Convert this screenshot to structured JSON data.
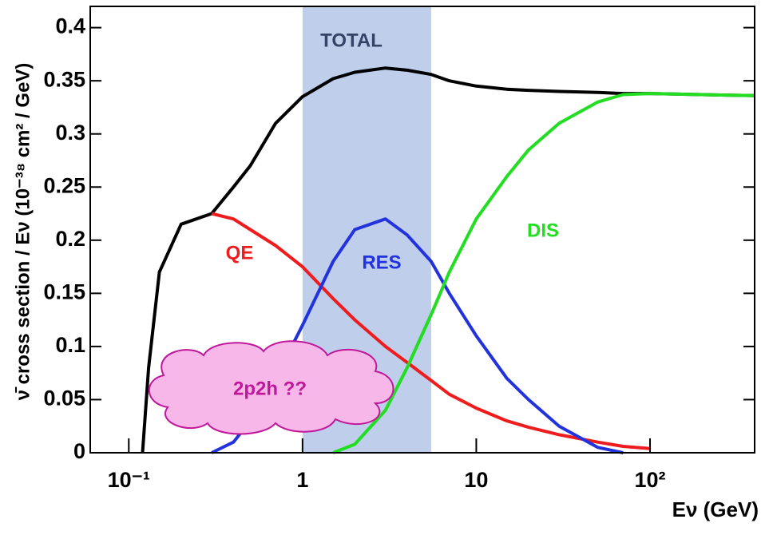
{
  "chart_data": {
    "type": "line",
    "y_label": "ν̄ cross section / Eν (10⁻³⁸ cm² / GeV)",
    "x_label": "Eν (GeV)",
    "log_x": true,
    "x": [
      0.12,
      0.13,
      0.15,
      0.2,
      0.3,
      0.4,
      0.5,
      0.7,
      1,
      1.5,
      2,
      3,
      4,
      5.5,
      7,
      10,
      15,
      20,
      30,
      50,
      70,
      100,
      200,
      400
    ],
    "series": [
      {
        "name": "TOTAL",
        "color": "#000000",
        "values": [
          0,
          0.08,
          0.17,
          0.215,
          0.225,
          0.25,
          0.27,
          0.31,
          0.335,
          0.352,
          0.358,
          0.362,
          0.36,
          0.356,
          0.35,
          0.345,
          0.342,
          0.341,
          0.34,
          0.339,
          0.338,
          0.338,
          0.337,
          0.336
        ]
      },
      {
        "name": "QE",
        "color": "#ee1c1c",
        "values": [
          null,
          null,
          null,
          null,
          0.225,
          0.22,
          0.21,
          0.195,
          0.175,
          0.145,
          0.125,
          0.1,
          0.085,
          0.068,
          0.055,
          0.042,
          0.03,
          0.024,
          0.017,
          0.01,
          0.006,
          0.004,
          null,
          null
        ]
      },
      {
        "name": "RES",
        "color": "#2233dd",
        "values": [
          null,
          null,
          null,
          null,
          0,
          0.01,
          0.03,
          0.07,
          0.12,
          0.18,
          0.21,
          0.22,
          0.205,
          0.18,
          0.15,
          0.11,
          0.07,
          0.05,
          0.025,
          0.005,
          0,
          null,
          null,
          null
        ]
      },
      {
        "name": "DIS",
        "color": "#22dd22",
        "values": [
          null,
          null,
          null,
          null,
          null,
          null,
          null,
          null,
          null,
          0,
          0.008,
          0.04,
          0.08,
          0.13,
          0.17,
          0.22,
          0.26,
          0.285,
          0.31,
          0.33,
          0.337,
          0.338,
          0.337,
          0.336
        ]
      }
    ],
    "highlight": [
      1,
      5.5
    ],
    "highlight_color": "#b3c6e8",
    "annotation": "2p2h ??",
    "xlim": [
      0.06,
      400
    ],
    "ylim": [
      0,
      0.42
    ],
    "xticks": [
      {
        "value": 0.1,
        "label": "10⁻¹"
      },
      1,
      10,
      {
        "value": 100,
        "label": "10²"
      }
    ],
    "yticks": [
      0,
      0.05,
      0.1,
      0.15,
      0.2,
      0.25,
      0.3,
      0.35,
      0.4
    ]
  }
}
